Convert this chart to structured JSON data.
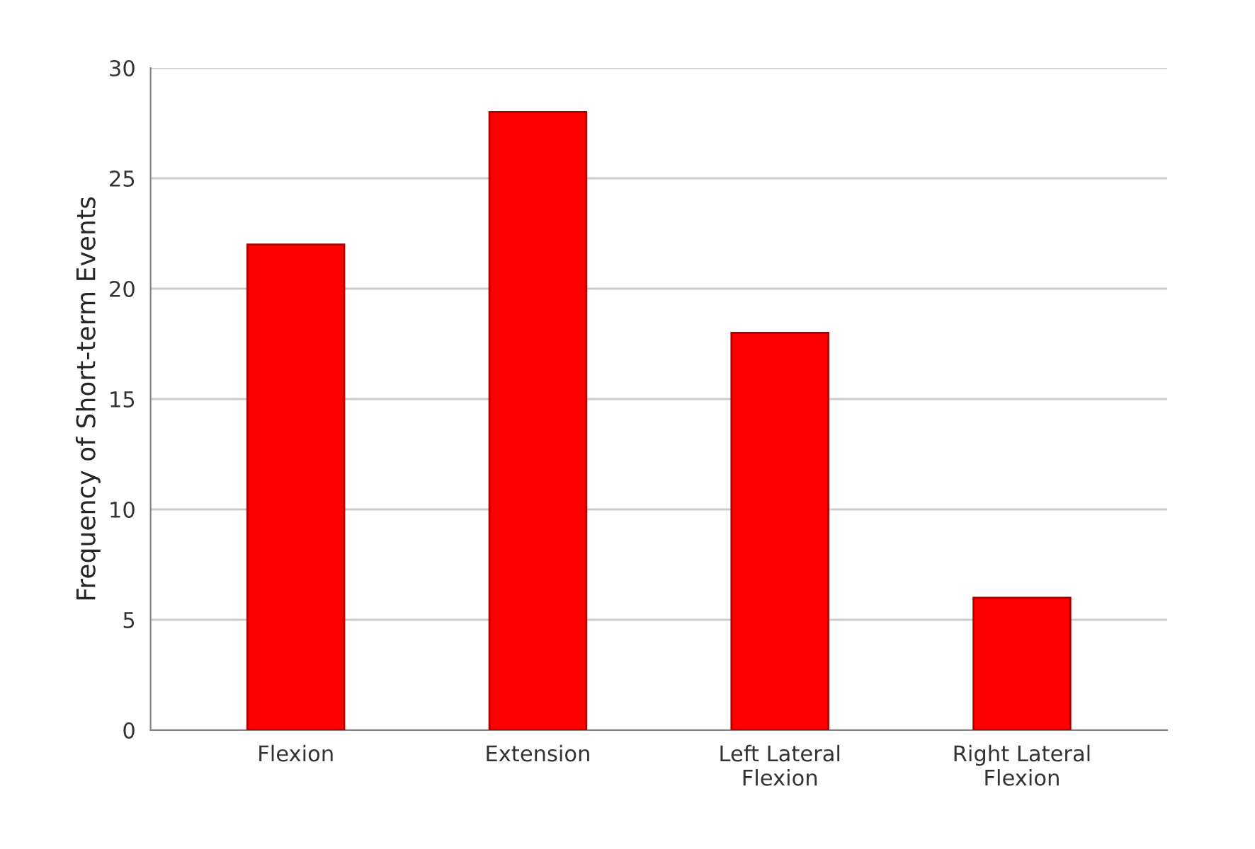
{
  "chart_data": {
    "type": "bar",
    "ylabel": "Frequency of Short-term Events",
    "categories": [
      "Flexion",
      "Extension",
      "Left Lateral\nFlexion",
      "Right Lateral\nFlexion"
    ],
    "values": [
      22,
      28,
      18,
      6
    ],
    "color": "#ff0000",
    "ylim": [
      0,
      30
    ],
    "yticks": [
      0,
      5,
      10,
      15,
      20,
      25,
      30
    ],
    "grid": "y"
  }
}
